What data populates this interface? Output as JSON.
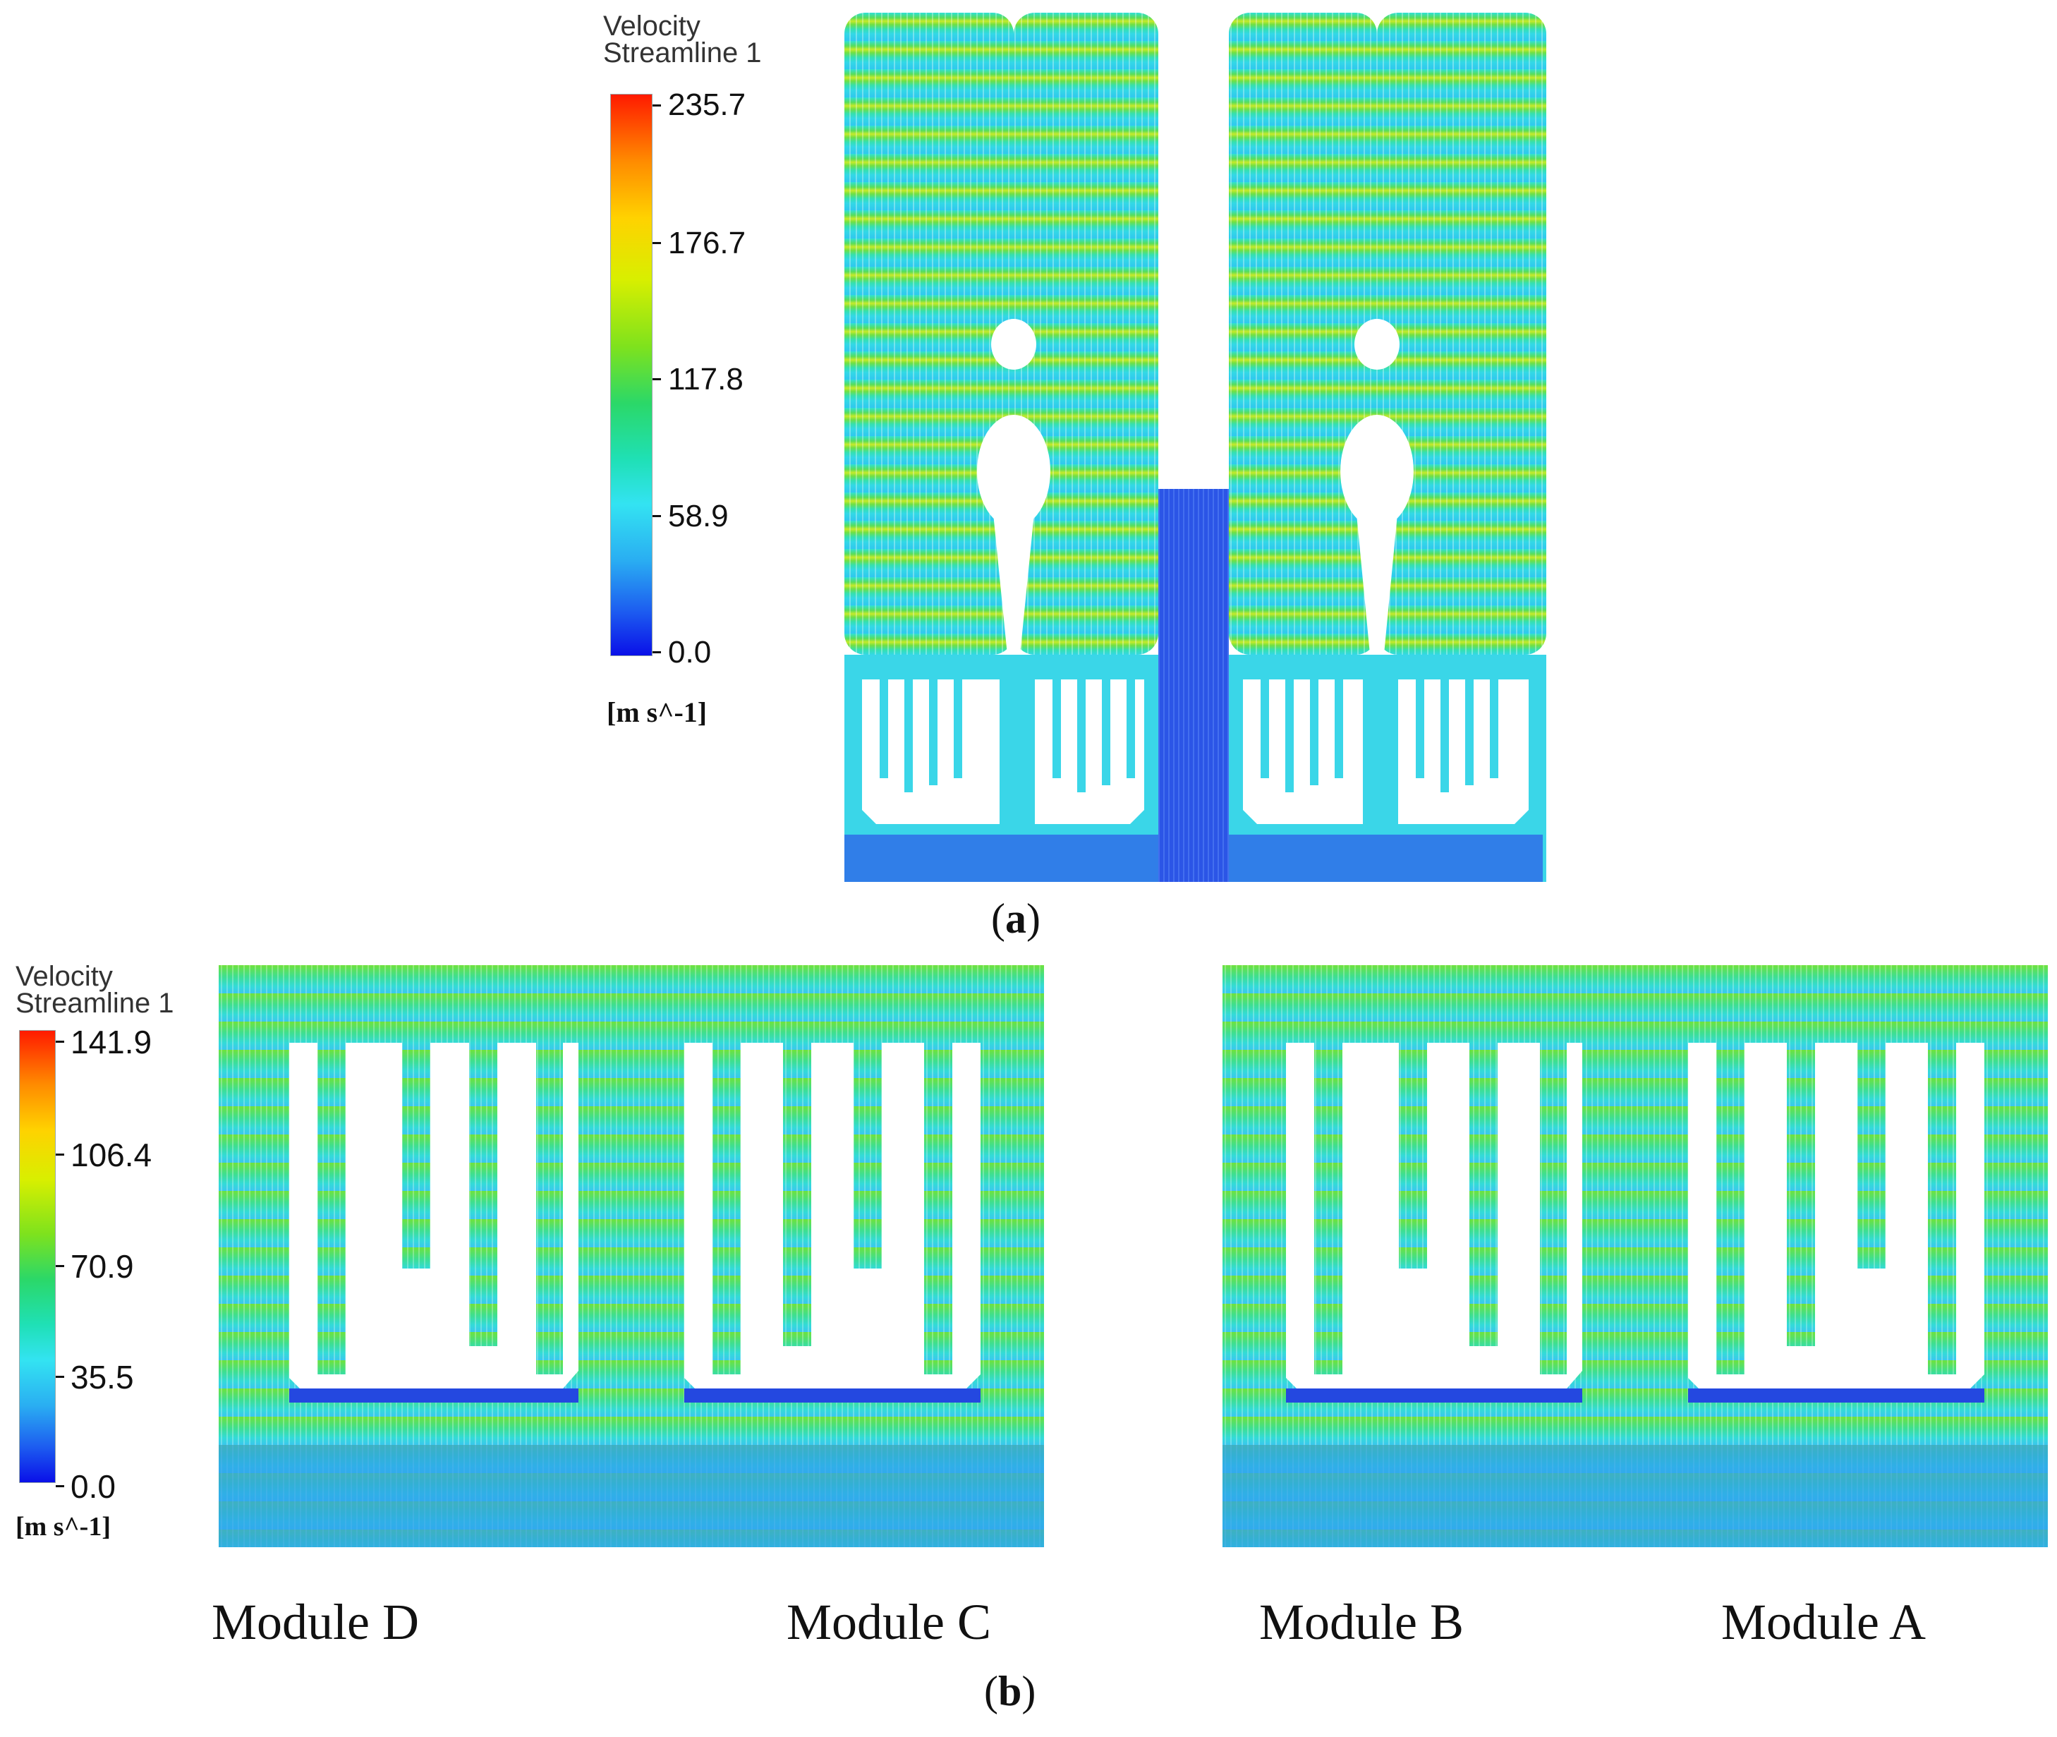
{
  "figure_a": {
    "legend": {
      "title_line1": "Velocity",
      "title_line2": "Streamline 1",
      "ticks": [
        "235.7",
        "176.7",
        "117.8",
        "58.9",
        "0.0"
      ],
      "units": "[m s^-1]"
    },
    "caption_open": "(",
    "caption_letter": "a",
    "caption_close": ")"
  },
  "figure_b": {
    "legend": {
      "title_line1": "Velocity",
      "title_line2": "Streamline 1",
      "ticks": [
        "141.9",
        "106.4",
        "70.9",
        "35.5",
        "0.0"
      ],
      "units": "[m s^-1]"
    },
    "modules": [
      "Module D",
      "Module C",
      "Module B",
      "Module A"
    ],
    "caption_open": "(",
    "caption_letter": "b",
    "caption_close": ")"
  },
  "colors": {
    "max": "#ff1a00",
    "high": "#ffd200",
    "mid": "#2bd868",
    "low": "#33e3f2",
    "min": "#0a10e8"
  }
}
